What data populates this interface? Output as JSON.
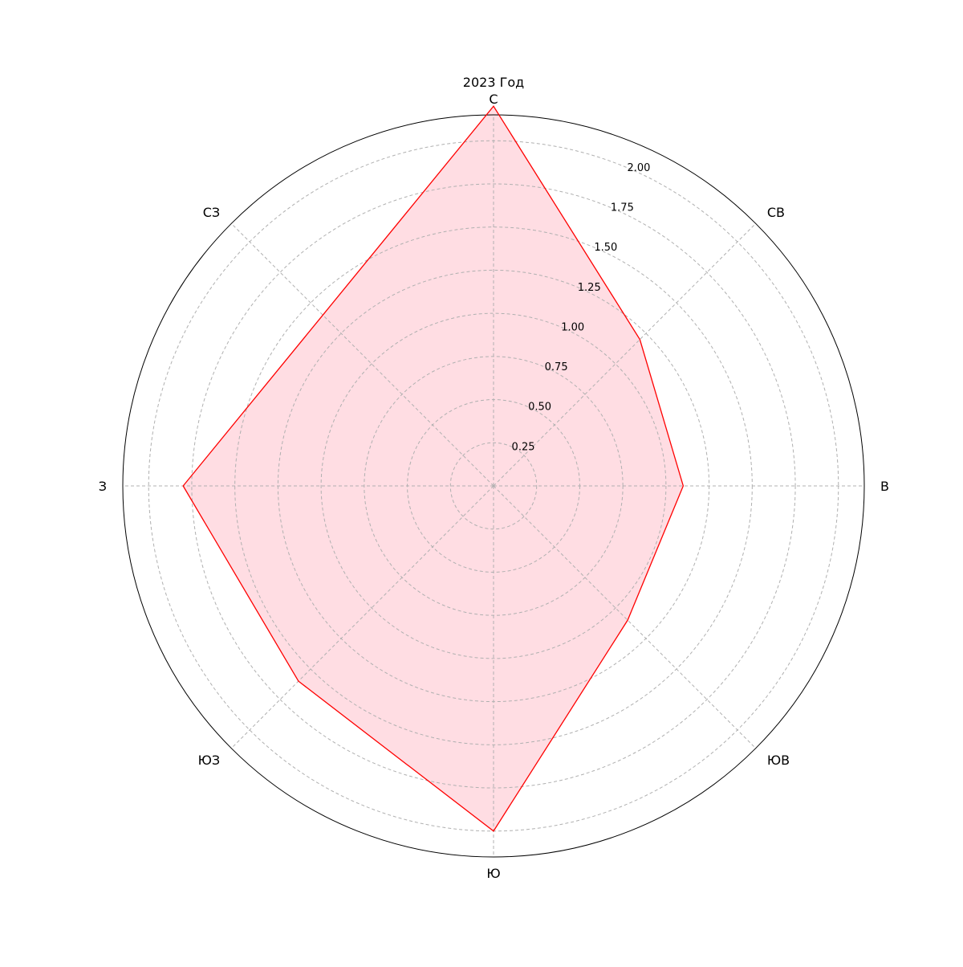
{
  "chart_data": {
    "type": "radar",
    "title": "2023 Год",
    "categories": [
      "С",
      "СВ",
      "В",
      "ЮВ",
      "Ю",
      "ЮЗ",
      "З",
      "СЗ"
    ],
    "series": [
      {
        "values": [
          2.2,
          1.2,
          1.1,
          1.1,
          2.0,
          1.6,
          1.8,
          1.4
        ]
      }
    ],
    "radial_ticks": [
      0.25,
      0.5,
      0.75,
      1.0,
      1.25,
      1.5,
      1.75,
      2.0
    ],
    "radial_tick_labels": [
      "0.25",
      "0.50",
      "0.75",
      "1.00",
      "1.25",
      "1.50",
      "1.75",
      "2.00"
    ],
    "rlim": [
      0,
      2.15
    ],
    "grid": true,
    "start_direction": "north",
    "rotation": "clockwise",
    "colors": {
      "line": "#ff0000",
      "fill": "#ffdde3",
      "grid": "#b0b0b0",
      "frame": "#000000"
    }
  }
}
